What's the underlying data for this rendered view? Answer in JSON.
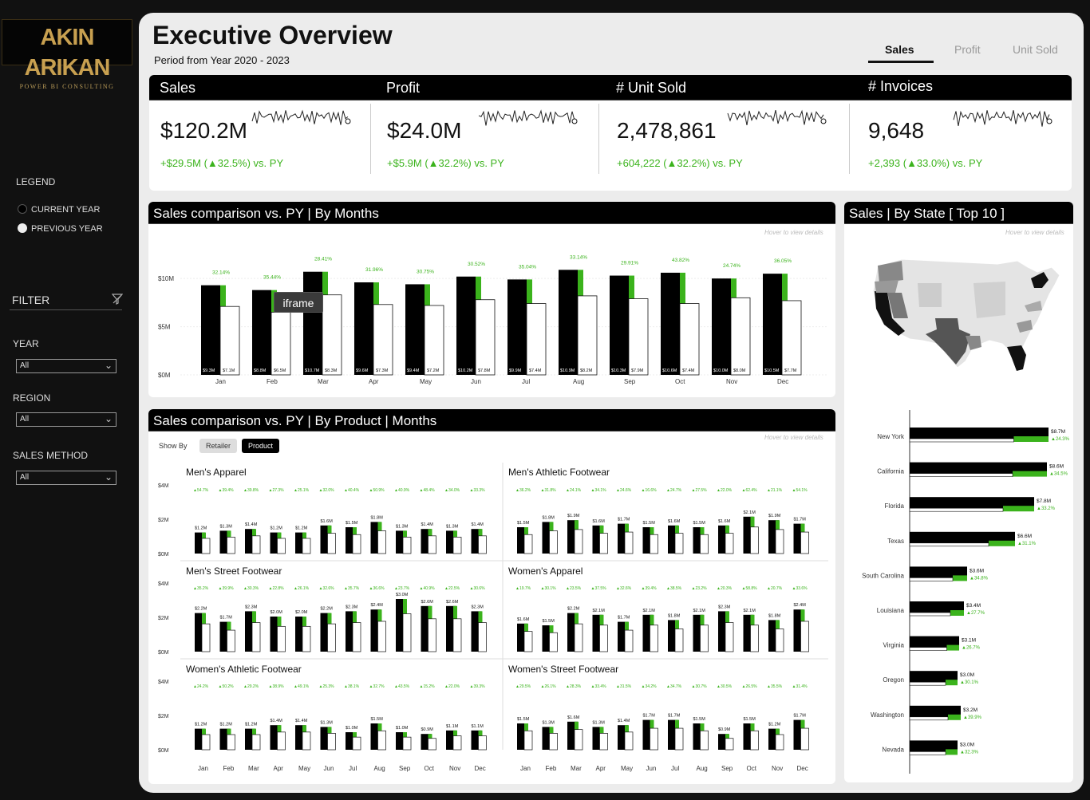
{
  "brand": {
    "logo_name": "AKIN ARIKAN",
    "logo_sub": "POWER BI CONSULTING"
  },
  "header": {
    "title": "Executive Overview",
    "subtitle": "Period from Year 2020 - 2023"
  },
  "tabs": [
    {
      "label": "Sales",
      "active": true
    },
    {
      "label": "Profit",
      "active": false
    },
    {
      "label": "Unit Sold",
      "active": false
    }
  ],
  "legend": {
    "title": "LEGEND",
    "current": "CURRENT YEAR",
    "previous": "PREVIOUS YEAR"
  },
  "filter": {
    "title": "FILTER",
    "fields": [
      {
        "label": "YEAR",
        "value": "All"
      },
      {
        "label": "REGION",
        "value": "All"
      },
      {
        "label": "SALES METHOD",
        "value": "All"
      }
    ]
  },
  "kpis": [
    {
      "label": "Sales",
      "value": "$120.2M",
      "delta": "+$29.5M (▲32.5%) vs. PY"
    },
    {
      "label": "Profit",
      "value": "$24.0M",
      "delta": "+$5.9M (▲32.2%) vs. PY"
    },
    {
      "label": "# Unit Sold",
      "value": "2,478,861",
      "delta": "+604,222 (▲32.2%) vs. PY"
    },
    {
      "label": "# Invoices",
      "value": "9,648",
      "delta": "+2,393 (▲33.0%) vs. PY"
    }
  ],
  "monthly_panel": {
    "title": "Sales comparison vs. PY | By Months",
    "hint": "Hover to view details",
    "tooltip": "iframe"
  },
  "product_panel": {
    "title": "Sales comparison vs. PY | By Product | Months",
    "hint": "Hover to view details",
    "show_by": "Show By",
    "buttons": [
      "Retailer",
      "Product"
    ]
  },
  "state_panel": {
    "title": "Sales | By State [ Top 10 ]",
    "hint": "Hover to view details"
  },
  "chart_data": [
    {
      "type": "bar",
      "id": "monthly",
      "categories": [
        "Jan",
        "Feb",
        "Mar",
        "Apr",
        "May",
        "Jun",
        "Jul",
        "Aug",
        "Sep",
        "Oct",
        "Nov",
        "Dec"
      ],
      "yticks": [
        "$0M",
        "$5M",
        "$10M"
      ],
      "ylim": [
        0,
        12
      ],
      "series": [
        {
          "values": [
            9.3,
            8.8,
            10.7,
            9.6,
            9.4,
            10.2,
            9.9,
            10.9,
            10.3,
            10.6,
            10.0,
            10.5
          ]
        },
        {
          "values": [
            7.1,
            6.5,
            8.3,
            7.3,
            7.2,
            7.8,
            7.4,
            8.2,
            7.9,
            7.4,
            8.0,
            7.7
          ]
        }
      ],
      "value_labels_cy": [
        "$9.3M",
        "$8.8M",
        "$10.7M",
        "$9.6M",
        "$9.4M",
        "$10.2M",
        "$9.9M",
        "$10.9M",
        "$10.3M",
        "$10.6M",
        "$10.0M",
        "$10.5M"
      ],
      "value_labels_py": [
        "$7.1M",
        "$6.5M",
        "$8.3M",
        "$7.3M",
        "$7.2M",
        "$7.8M",
        "$7.4M",
        "$8.2M",
        "$7.9M",
        "$7.4M",
        "$8.0M",
        "$7.7M"
      ],
      "growth_labels": [
        "32.14%",
        "35.44%",
        "28.41%",
        "31.96%",
        "30.75%",
        "30.52%",
        "35.04%",
        "33.14%",
        "29.91%",
        "43.82%",
        "24.74%",
        "36.05%"
      ]
    },
    {
      "type": "bar",
      "id": "mens-apparel",
      "title": "Men's Apparel",
      "yticks": [
        "$0M",
        "$2M",
        "$4M"
      ],
      "values": [
        1.2,
        1.3,
        1.4,
        1.2,
        1.2,
        1.6,
        1.5,
        1.8,
        1.3,
        1.4,
        1.3,
        1.4
      ],
      "labels": [
        "$1.2M",
        "$1.3M",
        "$1.4M",
        "$1.2M",
        "$1.2M",
        "$1.6M",
        "$1.5M",
        "$1.8M",
        "$1.3M",
        "$1.4M",
        "$1.3M",
        "$1.4M"
      ],
      "pcts": [
        "▲54.7%",
        "▲39.4%",
        "▲39.8%",
        "▲27.3%",
        "▲25.1%",
        "▲32.0%",
        "▲40.4%",
        "▲50.9%",
        "▲40.9%",
        "▲48.4%",
        "▲34.0%",
        "▲33.3%"
      ]
    },
    {
      "type": "bar",
      "id": "mens-athletic",
      "title": "Men's Athletic Footwear",
      "values": [
        1.5,
        1.8,
        1.9,
        1.6,
        1.7,
        1.5,
        1.6,
        1.5,
        1.6,
        2.1,
        1.9,
        1.7
      ],
      "labels": [
        "$1.5M",
        "$1.8M",
        "$1.9M",
        "$1.6M",
        "$1.7M",
        "$1.5M",
        "$1.6M",
        "$1.5M",
        "$1.6M",
        "$2.1M",
        "$1.9M",
        "$1.7M"
      ],
      "pcts": [
        "▲36.2%",
        "▲31.8%",
        "▲24.1%",
        "▲34.1%",
        "▲24.6%",
        "▲16.6%",
        "▲24.7%",
        "▲27.5%",
        "▲22.0%",
        "▲62.4%",
        "▲21.1%",
        "▲54.1%"
      ]
    },
    {
      "type": "bar",
      "id": "mens-street",
      "title": "Men's Street Footwear",
      "yticks": [
        "$0M",
        "$2M",
        "$4M"
      ],
      "values": [
        2.2,
        1.7,
        2.3,
        2.0,
        2.0,
        2.2,
        2.3,
        2.4,
        3.0,
        2.6,
        2.6,
        2.3
      ],
      "labels": [
        "$2.2M",
        "$1.7M",
        "$2.3M",
        "$2.0M",
        "$2.0M",
        "$2.2M",
        "$2.3M",
        "$2.4M",
        "$3.0M",
        "$2.6M",
        "$2.6M",
        "$2.3M"
      ],
      "pcts": [
        "▲35.2%",
        "▲39.9%",
        "▲30.3%",
        "▲22.8%",
        "▲26.1%",
        "▲32.6%",
        "▲35.7%",
        "▲36.6%",
        "▲23.7%",
        "▲40.9%",
        "▲22.5%",
        "▲30.6%"
      ]
    },
    {
      "type": "bar",
      "id": "womens-apparel",
      "title": "Women's Apparel",
      "values": [
        1.6,
        1.5,
        2.2,
        2.1,
        1.7,
        2.1,
        1.8,
        2.1,
        2.3,
        2.1,
        1.8,
        2.4
      ],
      "labels": [
        "$1.6M",
        "$1.5M",
        "$2.2M",
        "$2.1M",
        "$1.7M",
        "$2.1M",
        "$1.8M",
        "$2.1M",
        "$2.3M",
        "$2.1M",
        "$1.8M",
        "$2.4M"
      ],
      "pcts": [
        "▲19.7%",
        "▲30.1%",
        "▲23.5%",
        "▲37.5%",
        "▲32.6%",
        "▲39.4%",
        "▲38.5%",
        "▲23.2%",
        "▲20.3%",
        "▲58.8%",
        "▲20.7%",
        "▲33.6%"
      ]
    },
    {
      "type": "bar",
      "id": "womens-athletic",
      "title": "Women's Athletic Footwear",
      "yticks": [
        "$0M",
        "$2M",
        "$4M"
      ],
      "values": [
        1.2,
        1.2,
        1.2,
        1.4,
        1.4,
        1.3,
        1.0,
        1.5,
        1.0,
        0.9,
        1.1,
        1.1
      ],
      "labels": [
        "$1.2M",
        "$1.2M",
        "$1.2M",
        "$1.4M",
        "$1.4M",
        "$1.3M",
        "$1.0M",
        "$1.5M",
        "$1.0M",
        "$0.9M",
        "$1.1M",
        "$1.1M"
      ],
      "pcts": [
        "▲24.2%",
        "▲50.2%",
        "▲29.2%",
        "▲38.9%",
        "▲49.1%",
        "▲25.3%",
        "▲38.1%",
        "▲32.7%",
        "▲43.5%",
        "▲15.2%",
        "▲22.0%",
        "▲39.3%"
      ]
    },
    {
      "type": "bar",
      "id": "womens-street",
      "title": "Women's Street Footwear",
      "values": [
        1.5,
        1.3,
        1.6,
        1.3,
        1.4,
        1.7,
        1.7,
        1.5,
        0.9,
        1.5,
        1.2,
        1.7
      ],
      "labels": [
        "$1.5M",
        "$1.3M",
        "$1.6M",
        "$1.3M",
        "$1.4M",
        "$1.7M",
        "$1.7M",
        "$1.5M",
        "$0.9M",
        "$1.5M",
        "$1.2M",
        "$1.7M"
      ],
      "pcts": [
        "▲29.5%",
        "▲26.1%",
        "▲28.3%",
        "▲33.4%",
        "▲31.5%",
        "▲34.2%",
        "▲34.7%",
        "▲30.7%",
        "▲30.5%",
        "▲26.5%",
        "▲35.5%",
        "▲31.4%"
      ]
    },
    {
      "type": "bar",
      "id": "states",
      "orientation": "horizontal",
      "categories": [
        "New York",
        "California",
        "Florida",
        "Texas",
        "South Carolina",
        "Louisiana",
        "Virginia",
        "Oregon",
        "Washington",
        "Nevada"
      ],
      "values": [
        8.7,
        8.6,
        7.8,
        6.6,
        3.6,
        3.4,
        3.1,
        3.0,
        3.2,
        3.0
      ],
      "labels": [
        "$8.7M",
        "$8.6M",
        "$7.8M",
        "$6.6M",
        "$3.6M",
        "$3.4M",
        "$3.1M",
        "$3.0M",
        "$3.2M",
        "$3.0M"
      ],
      "pcts": [
        "▲24.3%",
        "▲34.5%",
        "▲33.2%",
        "▲31.1%",
        "▲34.8%",
        "▲27.7%",
        "▲26.7%",
        "▲30.1%",
        "▲39.9%",
        "▲32.3%"
      ]
    }
  ],
  "month_axis": [
    "Jan",
    "Feb",
    "Mar",
    "Apr",
    "May",
    "Jun",
    "Jul",
    "Aug",
    "Sep",
    "Oct",
    "Nov",
    "Dec"
  ],
  "colors": {
    "current": "#000000",
    "previous": "#ffffff",
    "growth": "#3bb31c",
    "panel_bg": "#ececec"
  },
  "icons": {
    "filter_clear": "filter-clear-icon",
    "dropdown": "chevron-down-icon"
  }
}
